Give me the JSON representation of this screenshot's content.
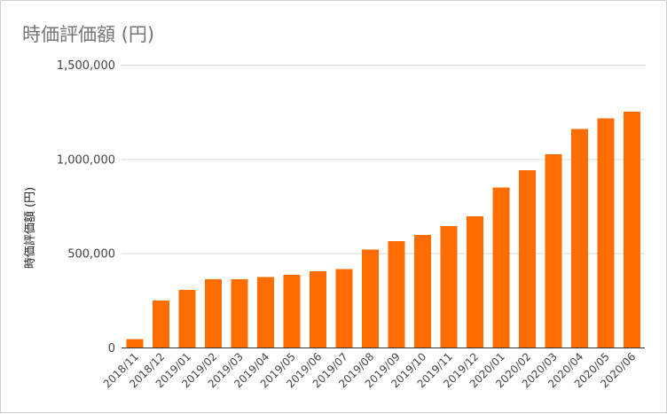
{
  "chart_data": {
    "type": "bar",
    "title": "時価評価額 (円)",
    "xlabel": "",
    "ylabel": "時価評価額 (円)",
    "categories": [
      "2018/11",
      "2018/12",
      "2019/01",
      "2019/02",
      "2019/03",
      "2019/04",
      "2019/05",
      "2019/06",
      "2019/07",
      "2019/08",
      "2019/09",
      "2019/10",
      "2019/11",
      "2019/12",
      "2020/01",
      "2020/02",
      "2020/03",
      "2020/04",
      "2020/05",
      "2020/06"
    ],
    "values": [
      45000,
      250000,
      305000,
      362000,
      362000,
      375000,
      385000,
      405000,
      415000,
      520000,
      565000,
      598000,
      645000,
      695000,
      848000,
      940000,
      1025000,
      1160000,
      1215000,
      1250000
    ],
    "ylim": [
      0,
      1500000
    ],
    "yticks": [
      0,
      500000,
      1000000,
      1500000
    ],
    "ytick_labels": [
      "0",
      "500,000",
      "1,000,000",
      "1,500,000"
    ],
    "grid": true,
    "legend": "none",
    "colors": {
      "bar": "#FF6D01",
      "grid": "#D9D9D9",
      "baseline": "#333333",
      "title": "#757575"
    }
  }
}
